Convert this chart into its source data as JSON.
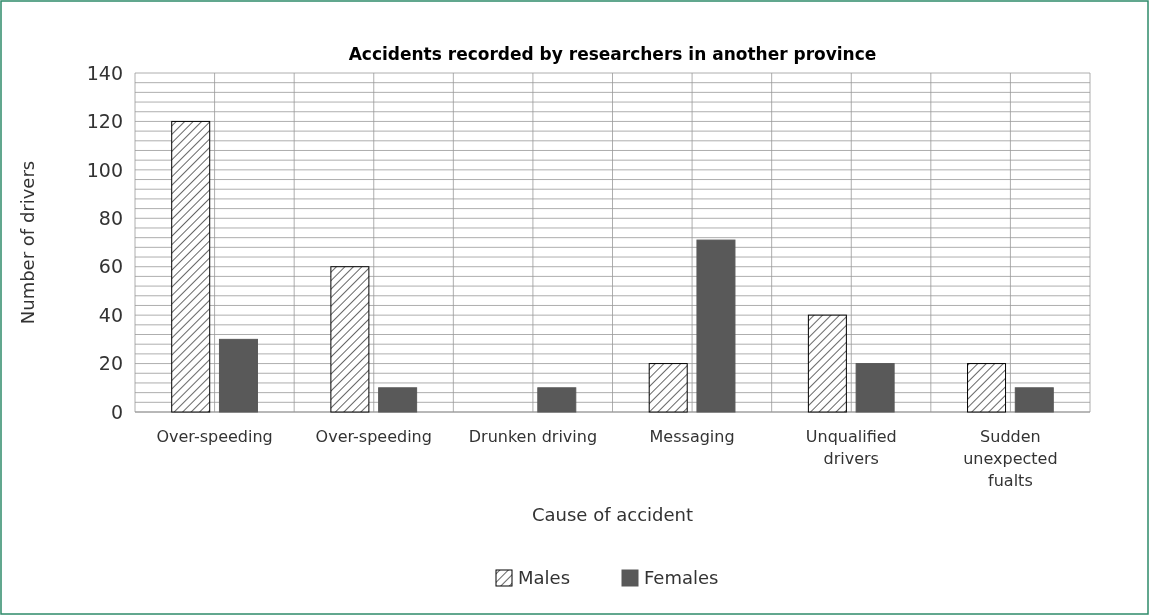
{
  "chart_data": {
    "type": "bar",
    "title": "Accidents recorded by researchers in another province",
    "xlabel": "Cause of accident",
    "ylabel": "Number of drivers",
    "categories": [
      "Over-speeding",
      "Over-speeding",
      "Drunken driving",
      "Messaging",
      "Unqualified drivers",
      "Sudden unexpected fualts"
    ],
    "series": [
      {
        "name": "Males",
        "color": "#000000",
        "values": [
          120,
          60,
          0,
          20,
          40,
          20
        ]
      },
      {
        "name": "Females",
        "color": "#595959",
        "values": [
          30,
          10,
          10,
          71,
          20,
          10
        ]
      }
    ],
    "ylim": [
      0,
      140
    ],
    "yticks": [
      0,
      {
        "value": 4,
        "label": null
      },
      {
        "value": 8,
        "label": null
      },
      {
        "value": 12,
        "label": null
      },
      {
        "value": 16,
        "label": null
      },
      20,
      {
        "value": 24,
        "label": null
      },
      {
        "value": 28,
        "label": null
      },
      {
        "value": 32,
        "label": null
      },
      {
        "value": 36,
        "label": null
      },
      40,
      {
        "value": 44,
        "label": null
      },
      {
        "value": 48,
        "label": null
      },
      {
        "value": 52,
        "label": null
      },
      {
        "value": 56,
        "label": null
      },
      60,
      {
        "value": 64,
        "label": null
      },
      {
        "value": 68,
        "label": null
      },
      {
        "value": 72,
        "label": null
      },
      {
        "value": 76,
        "label": null
      },
      80,
      {
        "value": 84,
        "label": null
      },
      {
        "value": 88,
        "label": null
      },
      {
        "value": 92,
        "label": null
      },
      {
        "value": 96,
        "label": null
      },
      100,
      {
        "value": 104,
        "label": null
      },
      {
        "value": 108,
        "label": null
      },
      {
        "value": 112,
        "label": null
      },
      {
        "value": 116,
        "label": null
      },
      120,
      {
        "value": 124,
        "label": null
      },
      {
        "value": 128,
        "label": null
      },
      {
        "value": 132,
        "label": null
      },
      {
        "value": 136,
        "label": null
      },
      140
    ],
    "grid": true,
    "legend": "bottom"
  }
}
